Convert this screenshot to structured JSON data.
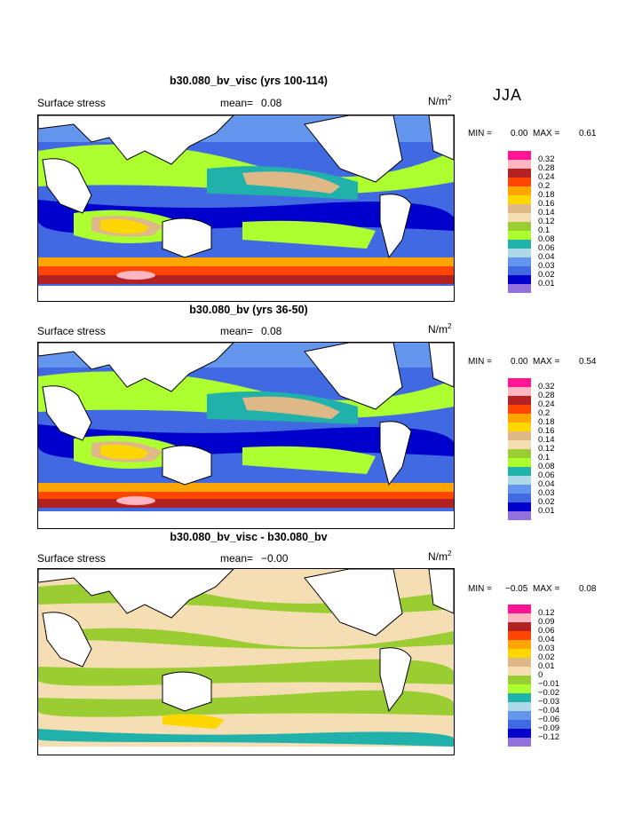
{
  "season": "JJA",
  "panels": [
    {
      "title": "b30.080_bv_visc (yrs 100-114)",
      "subtitle": "Surface stress",
      "mean_label": "mean=",
      "mean_value": "0.08",
      "units": "N/m",
      "units_exp": "2",
      "min_label": "MIN =",
      "min_value": "0.00",
      "max_label": "MAX =",
      "max_value": "0.61"
    },
    {
      "title": "b30.080_bv (yrs 36-50)",
      "subtitle": "Surface stress",
      "mean_label": "mean=",
      "mean_value": "0.08",
      "units": "N/m",
      "units_exp": "2",
      "min_label": "MIN =",
      "min_value": "0.00",
      "max_label": "MAX =",
      "max_value": "0.54"
    },
    {
      "title": "b30.080_bv_visc - b30.080_bv",
      "subtitle": "Surface stress",
      "mean_label": "mean=",
      "mean_value": "−0.00",
      "units": "N/m",
      "units_exp": "2",
      "min_label": "MIN =",
      "min_value": "−0.05",
      "max_label": "MAX =",
      "max_value": "0.08"
    }
  ],
  "chart_data": [
    {
      "type": "heatmap",
      "title": "b30.080_bv_visc (yrs 100-114)",
      "variable": "Surface stress",
      "units": "N/m2",
      "season": "JJA",
      "mean": 0.08,
      "min": 0.0,
      "max": 0.61,
      "colorbar_levels": [
        "0.32",
        "0.28",
        "0.24",
        "0.2",
        "0.18",
        "0.16",
        "0.14",
        "0.12",
        "0.1",
        "0.08",
        "0.06",
        "0.04",
        "0.03",
        "0.02",
        "0.01"
      ],
      "colorbar_colors": [
        "#ff1493",
        "#ffb6c1",
        "#b22222",
        "#ff4500",
        "#ffa500",
        "#ffd700",
        "#deb887",
        "#f5deb3",
        "#9acd32",
        "#adff2f",
        "#20b2aa",
        "#add8e6",
        "#6495ed",
        "#4169e1",
        "#0000cd",
        "#9370db"
      ]
    },
    {
      "type": "heatmap",
      "title": "b30.080_bv (yrs 36-50)",
      "variable": "Surface stress",
      "units": "N/m2",
      "season": "JJA",
      "mean": 0.08,
      "min": 0.0,
      "max": 0.54,
      "colorbar_levels": [
        "0.32",
        "0.28",
        "0.24",
        "0.2",
        "0.18",
        "0.16",
        "0.14",
        "0.12",
        "0.1",
        "0.08",
        "0.06",
        "0.04",
        "0.03",
        "0.02",
        "0.01"
      ],
      "colorbar_colors": [
        "#ff1493",
        "#ffb6c1",
        "#b22222",
        "#ff4500",
        "#ffa500",
        "#ffd700",
        "#deb887",
        "#f5deb3",
        "#9acd32",
        "#adff2f",
        "#20b2aa",
        "#add8e6",
        "#6495ed",
        "#4169e1",
        "#0000cd",
        "#9370db"
      ]
    },
    {
      "type": "heatmap",
      "title": "b30.080_bv_visc - b30.080_bv",
      "variable": "Surface stress",
      "units": "N/m2",
      "season": "JJA",
      "mean": -0.0,
      "min": -0.05,
      "max": 0.08,
      "colorbar_levels": [
        "0.12",
        "0.09",
        "0.06",
        "0.04",
        "0.03",
        "0.02",
        "0.01",
        "0",
        "−0.01",
        "−0.02",
        "−0.03",
        "−0.04",
        "−0.06",
        "−0.09",
        "−0.12"
      ],
      "colorbar_colors": [
        "#ff1493",
        "#ffb6c1",
        "#b22222",
        "#ff4500",
        "#ffa500",
        "#ffd700",
        "#deb887",
        "#f5deb3",
        "#9acd32",
        "#adff2f",
        "#20b2aa",
        "#add8e6",
        "#6495ed",
        "#4169e1",
        "#0000cd",
        "#9370db"
      ]
    }
  ]
}
